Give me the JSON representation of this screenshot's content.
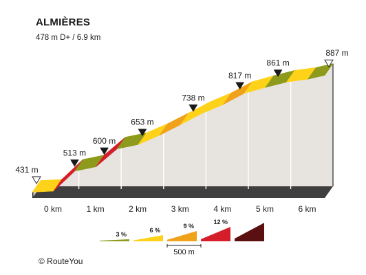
{
  "chart_data": {
    "type": "area",
    "title": "ALMIÈRES",
    "subtitle": "478 m D+ / 6.9 km",
    "x_unit": "km",
    "y_unit": "m",
    "x_ticks": [
      "0 km",
      "1 km",
      "2 km",
      "3 km",
      "4 km",
      "5 km",
      "6 km"
    ],
    "elevation_markers": [
      {
        "x": 0.0,
        "label": "431 m",
        "marker": "open-triangle"
      },
      {
        "x": 0.9,
        "label": "513 m",
        "marker": "filled-triangle"
      },
      {
        "x": 1.6,
        "label": "600 m",
        "marker": "filled-triangle"
      },
      {
        "x": 2.5,
        "label": "653 m",
        "marker": "filled-triangle"
      },
      {
        "x": 3.7,
        "label": "738 m",
        "marker": "filled-triangle"
      },
      {
        "x": 4.8,
        "label": "817 m",
        "marker": "filled-triangle"
      },
      {
        "x": 5.7,
        "label": "861 m",
        "marker": "filled-triangle"
      },
      {
        "x": 6.9,
        "label": "887 m",
        "marker": "open-triangle"
      }
    ],
    "segments": [
      {
        "x0": 0.0,
        "x1": 0.5,
        "y0": 431,
        "y1": 435,
        "grade_class": "6 %"
      },
      {
        "x0": 0.5,
        "x1": 1.0,
        "y0": 435,
        "y1": 513,
        "grade_class": "12 %"
      },
      {
        "x0": 1.0,
        "x1": 1.5,
        "y0": 513,
        "y1": 530,
        "grade_class": "3 %"
      },
      {
        "x0": 1.5,
        "x1": 2.0,
        "y0": 530,
        "y1": 600,
        "grade_class": "12 %"
      },
      {
        "x0": 2.0,
        "x1": 2.5,
        "y0": 600,
        "y1": 617,
        "grade_class": "3 %"
      },
      {
        "x0": 2.5,
        "x1": 3.0,
        "y0": 617,
        "y1": 653,
        "grade_class": "6 %"
      },
      {
        "x0": 3.0,
        "x1": 3.5,
        "y0": 653,
        "y1": 695,
        "grade_class": "9 %"
      },
      {
        "x0": 3.5,
        "x1": 4.0,
        "y0": 695,
        "y1": 738,
        "grade_class": "6 %"
      },
      {
        "x0": 4.0,
        "x1": 4.5,
        "y0": 738,
        "y1": 773,
        "grade_class": "6 %"
      },
      {
        "x0": 4.5,
        "x1": 5.0,
        "y0": 773,
        "y1": 817,
        "grade_class": "9 %"
      },
      {
        "x0": 5.0,
        "x1": 5.5,
        "y0": 817,
        "y1": 840,
        "grade_class": "6 %"
      },
      {
        "x0": 5.5,
        "x1": 6.0,
        "y0": 840,
        "y1": 861,
        "grade_class": "3 %"
      },
      {
        "x0": 6.0,
        "x1": 6.5,
        "y0": 861,
        "y1": 872,
        "grade_class": "6 %"
      },
      {
        "x0": 6.5,
        "x1": 6.9,
        "y0": 872,
        "y1": 887,
        "grade_class": "3 %"
      }
    ],
    "legend": {
      "placement": "bottom",
      "items": [
        {
          "label": "3 %",
          "color": "#8d9a1b"
        },
        {
          "label": "6 %",
          "color": "#ffd21a"
        },
        {
          "label": "9 %",
          "color": "#f0a21a"
        },
        {
          "label": "12 %",
          "color": "#d41f2a"
        },
        {
          "label": "",
          "color": "#5a0f10"
        }
      ],
      "scale_label": "500 m"
    },
    "colors": {
      "wall": "#e7e3df",
      "wall_edge": "#2a2a2a",
      "gridline": "#ffffff",
      "marker": "#1a1a1a"
    }
  },
  "credit": "© RouteYou"
}
